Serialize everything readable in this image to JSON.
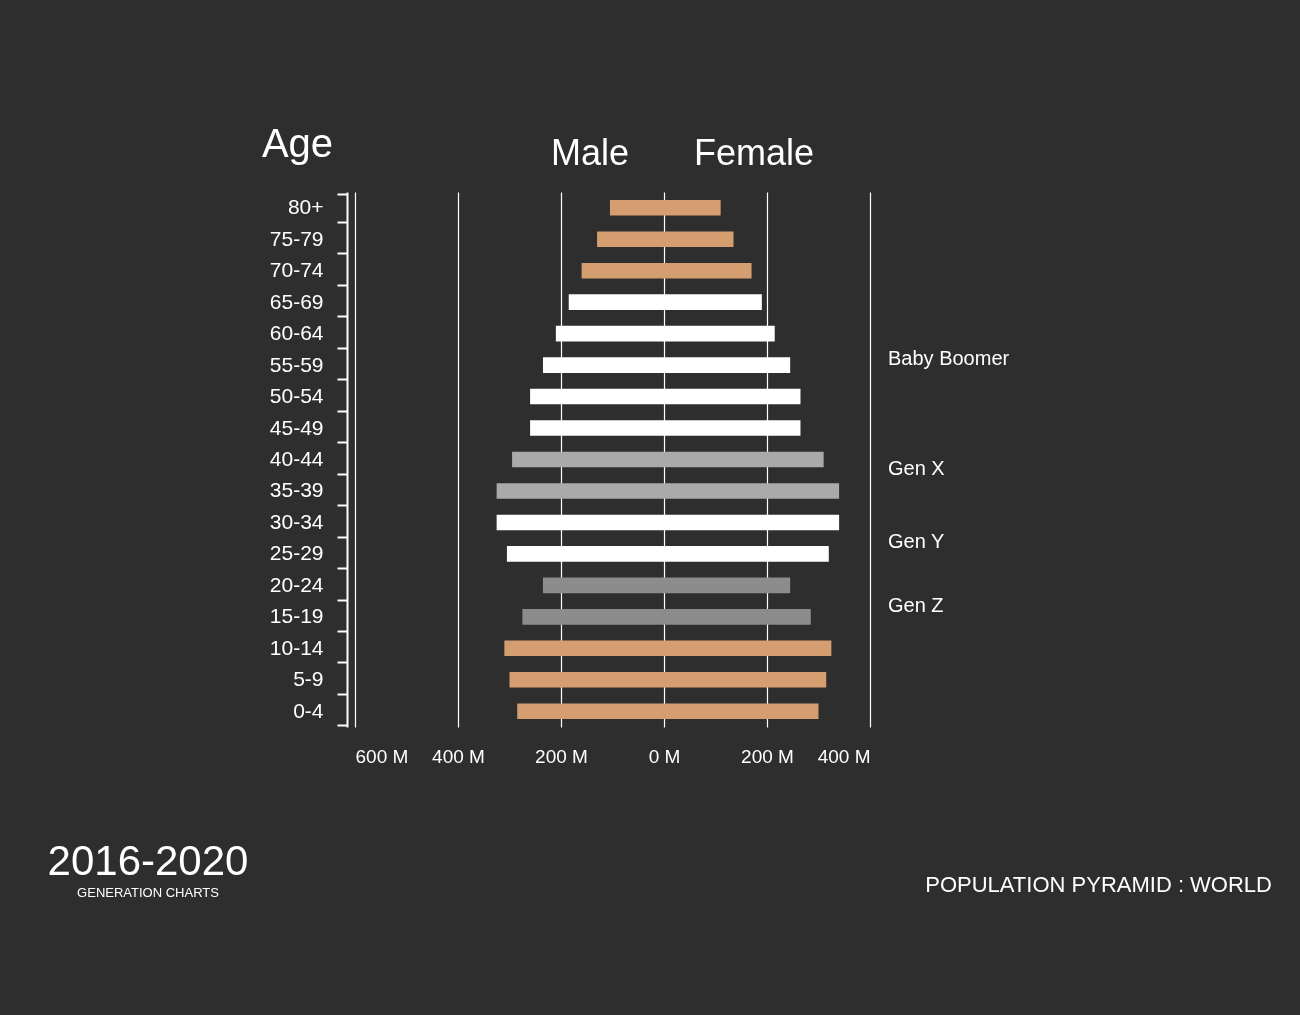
{
  "chart_data": {
    "type": "bar",
    "orientation": "horizontal",
    "title": "2016-2020",
    "subtitle": "GENERATION CHARTS",
    "ylabel": "Age",
    "categories": [
      "80+",
      "75-79",
      "70-74",
      "65-69",
      "60-64",
      "55-59",
      "50-54",
      "45-49",
      "40-44",
      "35-39",
      "30-34",
      "25-29",
      "20-24",
      "15-19",
      "10-14",
      "5-9",
      "0-4"
    ],
    "series": [
      {
        "name": "Male",
        "colors": [
          "#d59e70",
          "#d59e70",
          "#d59e70",
          "#ffffff",
          "#ffffff",
          "#ffffff",
          "#ffffff",
          "#ffffff",
          "#aaaaaa",
          "#aaaaaa",
          "#ffffff",
          "#ffffff",
          "#8c8c8c",
          "#8c8c8c",
          "#d59e70",
          "#d59e70",
          "#d59e70"
        ],
        "values": [
          -105,
          -130,
          -160,
          -185,
          -210,
          -235,
          -260,
          -260,
          -295,
          -325,
          -325,
          -305,
          -235,
          -275,
          -310,
          -300,
          -285
        ]
      },
      {
        "name": "Female",
        "colors": [
          "#d59e70",
          "#d59e70",
          "#d59e70",
          "#ffffff",
          "#ffffff",
          "#ffffff",
          "#ffffff",
          "#ffffff",
          "#aaaaaa",
          "#aaaaaa",
          "#ffffff",
          "#ffffff",
          "#8c8c8c",
          "#8c8c8c",
          "#d59e70",
          "#d59e70",
          "#d59e70"
        ],
        "values": [
          110,
          135,
          170,
          190,
          215,
          245,
          265,
          265,
          310,
          340,
          340,
          320,
          245,
          285,
          325,
          315,
          300
        ]
      }
    ],
    "xlim": [
      -600,
      400
    ],
    "xticks": [
      {
        "value": -600,
        "label": "600 M"
      },
      {
        "value": -400,
        "label": "400 M"
      },
      {
        "value": -200,
        "label": "200 M"
      },
      {
        "value": 0,
        "label": "0 M"
      },
      {
        "value": 200,
        "label": "200 M"
      },
      {
        "value": 400,
        "label": "400 M"
      }
    ],
    "grid": "x",
    "legend": false,
    "stacked": true,
    "annotations": [
      "Baby Boomer",
      "Gen X",
      "Gen Y",
      "Gen Z",
      "POPULATION PYRAMID : WORLD"
    ]
  }
}
